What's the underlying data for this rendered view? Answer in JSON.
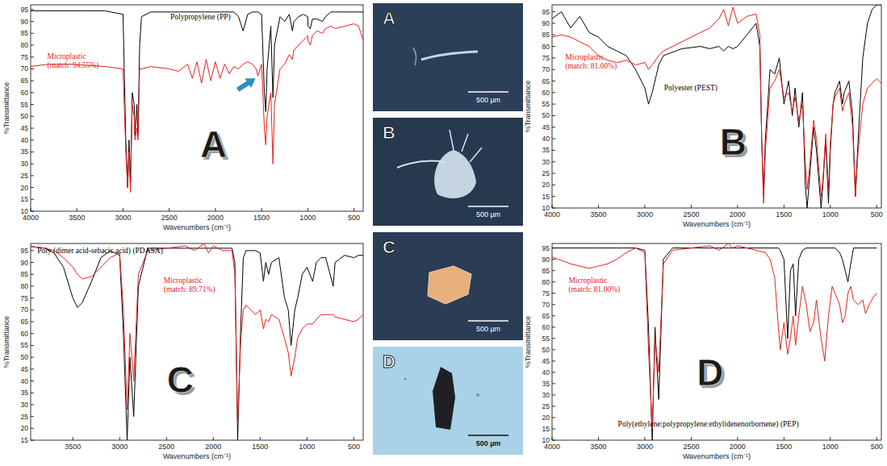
{
  "chart_data": [
    {
      "type": "line",
      "annotations": [
        "A"
      ],
      "x_label": "Wavenumbers (cm⁻¹)",
      "y_label": "%Transmittance",
      "x": [
        4000,
        3800,
        3600,
        3400,
        3200,
        3000,
        2970,
        2950,
        2935,
        2920,
        2900,
        2880,
        2870,
        2850,
        2838,
        2820,
        2800,
        2700,
        2500,
        2400,
        2300,
        2250,
        2200,
        2150,
        2100,
        2050,
        2000,
        1950,
        1900,
        1850,
        1800,
        1750,
        1700,
        1650,
        1600,
        1560,
        1540,
        1500,
        1470,
        1455,
        1440,
        1400,
        1377,
        1360,
        1300,
        1250,
        1200,
        1166,
        1150,
        1100,
        1050,
        1000,
        997,
        973,
        950,
        900,
        841,
        808,
        750,
        700,
        600,
        500,
        450,
        400
      ],
      "series": [
        {
          "name": "Polypropylene (PP)",
          "color": "#000000",
          "values": [
            94.5,
            94.5,
            94.5,
            94.5,
            94.5,
            93,
            40,
            20,
            40,
            22,
            60,
            55,
            42,
            55,
            42,
            80,
            92,
            94,
            94,
            94,
            94,
            94,
            94,
            94,
            94,
            94,
            94,
            94,
            94,
            94,
            94,
            92,
            86,
            93,
            94,
            94,
            94,
            93,
            60,
            52,
            70,
            88,
            58,
            80,
            92,
            90,
            93,
            86,
            90,
            92,
            93,
            92,
            88,
            87,
            91,
            91,
            90,
            92,
            94,
            94,
            94,
            94,
            94,
            94
          ]
        },
        {
          "name": "Microplastic (match: 94.55%)",
          "color": "#e8201c",
          "values": [
            71,
            72,
            72,
            71.5,
            71,
            70,
            35,
            20,
            35,
            18,
            55,
            50,
            40,
            45,
            40,
            70,
            70,
            71,
            70,
            69,
            72,
            66,
            73,
            64,
            74,
            65,
            73,
            66,
            72,
            68,
            71,
            70,
            72,
            73,
            72,
            70,
            67,
            72,
            45,
            38,
            50,
            60,
            30,
            55,
            70,
            72,
            76,
            74,
            78,
            80,
            82,
            84,
            82,
            80,
            84,
            86,
            85,
            87,
            88,
            87,
            88,
            89,
            88,
            82
          ]
        }
      ],
      "arrows": [
        {
          "x": 1540,
          "y": 67
        }
      ],
      "xlim": [
        4000,
        400
      ],
      "xticks": [
        4000,
        3500,
        3000,
        2500,
        2000,
        1500,
        1000,
        500
      ],
      "ylim": [
        10,
        97
      ],
      "yticks": [
        10,
        15,
        20,
        25,
        30,
        35,
        40,
        45,
        50,
        55,
        60,
        65,
        70,
        75,
        80,
        85,
        90,
        95
      ],
      "grid": false
    },
    {
      "type": "line",
      "annotations": [
        "B"
      ],
      "x_label": "Wavenumbers (cm⁻¹)",
      "y_label": "%Transmittance",
      "x": [
        4000,
        3900,
        3800,
        3700,
        3600,
        3500,
        3400,
        3300,
        3200,
        3100,
        3000,
        2960,
        2920,
        2850,
        2800,
        2600,
        2400,
        2300,
        2200,
        2150,
        2100,
        2050,
        2000,
        1900,
        1800,
        1760,
        1740,
        1720,
        1700,
        1650,
        1600,
        1550,
        1500,
        1450,
        1410,
        1380,
        1340,
        1300,
        1270,
        1250,
        1230,
        1180,
        1150,
        1120,
        1100,
        1080,
        1050,
        1020,
        1000,
        970,
        950,
        900,
        870,
        850,
        800,
        760,
        730,
        700,
        650,
        600,
        550,
        500,
        450,
        400
      ],
      "series": [
        {
          "name": "Polyester (PEST)",
          "color": "#000000",
          "values": [
            92,
            95,
            88,
            93,
            86,
            84,
            80,
            78,
            76,
            70,
            62,
            55,
            60,
            72,
            76,
            79,
            80,
            79,
            80,
            78,
            80,
            79,
            80,
            85,
            90,
            80,
            40,
            15,
            40,
            70,
            68,
            75,
            55,
            65,
            50,
            62,
            45,
            60,
            20,
            10,
            20,
            45,
            35,
            20,
            10,
            20,
            40,
            12,
            35,
            55,
            60,
            65,
            55,
            60,
            65,
            50,
            15,
            40,
            75,
            90,
            96,
            98,
            98,
            98
          ]
        },
        {
          "name": "Microplastic (match: 81.00%)",
          "color": "#e8201c",
          "values": [
            84,
            85,
            84,
            82,
            80,
            76,
            74,
            73,
            74,
            72,
            73,
            70,
            72,
            76,
            78,
            82,
            86,
            88,
            92,
            96,
            89,
            97,
            90,
            93,
            94,
            85,
            40,
            12,
            35,
            62,
            65,
            70,
            58,
            60,
            52,
            58,
            48,
            55,
            30,
            18,
            25,
            48,
            40,
            25,
            15,
            22,
            42,
            18,
            38,
            55,
            58,
            62,
            52,
            55,
            60,
            45,
            15,
            35,
            55,
            62,
            64,
            66,
            64,
            63
          ]
        }
      ],
      "xlim": [
        4000,
        450
      ],
      "xticks": [
        4000,
        3500,
        3000,
        2500,
        2000,
        1500,
        1000,
        500
      ],
      "ylim": [
        10,
        98
      ],
      "yticks": [
        10,
        15,
        20,
        25,
        30,
        35,
        40,
        45,
        50,
        55,
        60,
        65,
        70,
        75,
        80,
        85,
        90,
        95
      ],
      "grid": false
    },
    {
      "type": "line",
      "annotations": [
        "C"
      ],
      "x_label": "Wavenumbers (cm⁻¹)",
      "y_label": "%Transmittance",
      "x": [
        4000,
        3800,
        3700,
        3600,
        3500,
        3450,
        3400,
        3300,
        3200,
        3100,
        3000,
        2960,
        2920,
        2890,
        2850,
        2800,
        2700,
        2500,
        2300,
        2200,
        2100,
        2050,
        2000,
        1950,
        1900,
        1800,
        1770,
        1740,
        1710,
        1680,
        1650,
        1600,
        1550,
        1500,
        1465,
        1440,
        1410,
        1380,
        1300,
        1240,
        1200,
        1170,
        1130,
        1100,
        1050,
        1000,
        940,
        900,
        850,
        800,
        720,
        700,
        600,
        500,
        450,
        400
      ],
      "series": [
        {
          "name": "Poly (dimer acid-sebacic acid) (PDASA)",
          "color": "#000000",
          "values": [
            97,
            96,
            94,
            88,
            75,
            71,
            73,
            82,
            92,
            95,
            93,
            60,
            15,
            50,
            25,
            80,
            96,
            96,
            96,
            96,
            96,
            96,
            96,
            96,
            96,
            96,
            90,
            15,
            60,
            92,
            95,
            95,
            95,
            94,
            82,
            90,
            85,
            90,
            92,
            75,
            70,
            55,
            70,
            75,
            85,
            88,
            82,
            90,
            92,
            92,
            80,
            90,
            93,
            92,
            93,
            93
          ]
        },
        {
          "name": "Microplastic (match: 89.71%)",
          "color": "#e8201c",
          "values": [
            97,
            96,
            95,
            92,
            88,
            85,
            83,
            84,
            88,
            92,
            94,
            70,
            28,
            60,
            40,
            85,
            95,
            96,
            97,
            95,
            98,
            94,
            97,
            96,
            95,
            95,
            85,
            22,
            55,
            70,
            72,
            70,
            68,
            70,
            62,
            66,
            65,
            68,
            66,
            58,
            52,
            42,
            50,
            58,
            62,
            64,
            64,
            66,
            68,
            68,
            68,
            67,
            66,
            65,
            66,
            68
          ]
        }
      ],
      "xlim": [
        3950,
        400
      ],
      "xticks": [
        3500,
        3000,
        2500,
        2000,
        1500,
        1000,
        500
      ],
      "ylim": [
        15,
        98
      ],
      "yticks": [
        15,
        20,
        25,
        30,
        35,
        40,
        45,
        50,
        55,
        60,
        65,
        70,
        75,
        80,
        85,
        90,
        95
      ],
      "grid": false
    },
    {
      "type": "line",
      "annotations": [
        "D"
      ],
      "x_label": "Wavenumbers (cm⁻¹)",
      "y_label": "%Transmittance",
      "x": [
        4000,
        3800,
        3600,
        3500,
        3400,
        3300,
        3200,
        3100,
        3000,
        2960,
        2920,
        2890,
        2850,
        2800,
        2700,
        2500,
        2300,
        2200,
        2100,
        2050,
        2000,
        1900,
        1800,
        1700,
        1650,
        1600,
        1560,
        1540,
        1500,
        1460,
        1430,
        1400,
        1375,
        1340,
        1300,
        1260,
        1220,
        1180,
        1150,
        1100,
        1060,
        1020,
        980,
        950,
        900,
        870,
        840,
        810,
        780,
        750,
        700,
        650,
        620,
        580,
        540,
        500
      ],
      "series": [
        {
          "name": "Poly(ethylene:polypropylene:ethylidenenorbornene) (PEP)",
          "color": "#000000",
          "values": [
            95,
            95,
            95,
            95,
            95,
            95,
            95,
            95,
            94,
            60,
            10,
            60,
            28,
            90,
            95,
            95,
            95,
            95,
            95,
            95,
            95,
            95,
            95,
            95,
            95,
            95,
            95,
            94,
            90,
            55,
            85,
            88,
            65,
            90,
            94,
            95,
            95,
            95,
            95,
            95,
            95,
            95,
            95,
            95,
            93,
            90,
            85,
            80,
            88,
            95,
            95,
            95,
            95,
            95,
            95,
            95
          ]
        },
        {
          "name": "Microplastic (match: 81.00%)",
          "color": "#e8201c",
          "values": [
            91,
            88,
            86,
            87,
            88,
            90,
            93,
            95,
            93,
            50,
            15,
            55,
            40,
            88,
            94,
            95,
            96,
            94,
            97,
            95,
            96,
            95,
            94,
            93,
            90,
            82,
            60,
            50,
            62,
            48,
            55,
            65,
            52,
            65,
            78,
            70,
            58,
            62,
            72,
            55,
            45,
            65,
            78,
            75,
            70,
            62,
            65,
            75,
            78,
            72,
            70,
            72,
            66,
            70,
            73,
            75
          ]
        }
      ],
      "xlim": [
        4000,
        450
      ],
      "xticks": [
        4000,
        3500,
        3000,
        2500,
        2000,
        1500,
        1000,
        500
      ],
      "ylim": [
        10,
        97
      ],
      "yticks": [
        10,
        15,
        20,
        25,
        30,
        35,
        40,
        45,
        50,
        55,
        60,
        65,
        70,
        75,
        80,
        85,
        90,
        95
      ],
      "grid": false
    }
  ],
  "micrographs": [
    {
      "label": "A",
      "scale_bar": "500 µm"
    },
    {
      "label": "B",
      "scale_bar": "500 µm"
    },
    {
      "label": "C",
      "scale_bar": "500 µm"
    },
    {
      "label": "D",
      "scale_bar": "500 µm"
    }
  ]
}
